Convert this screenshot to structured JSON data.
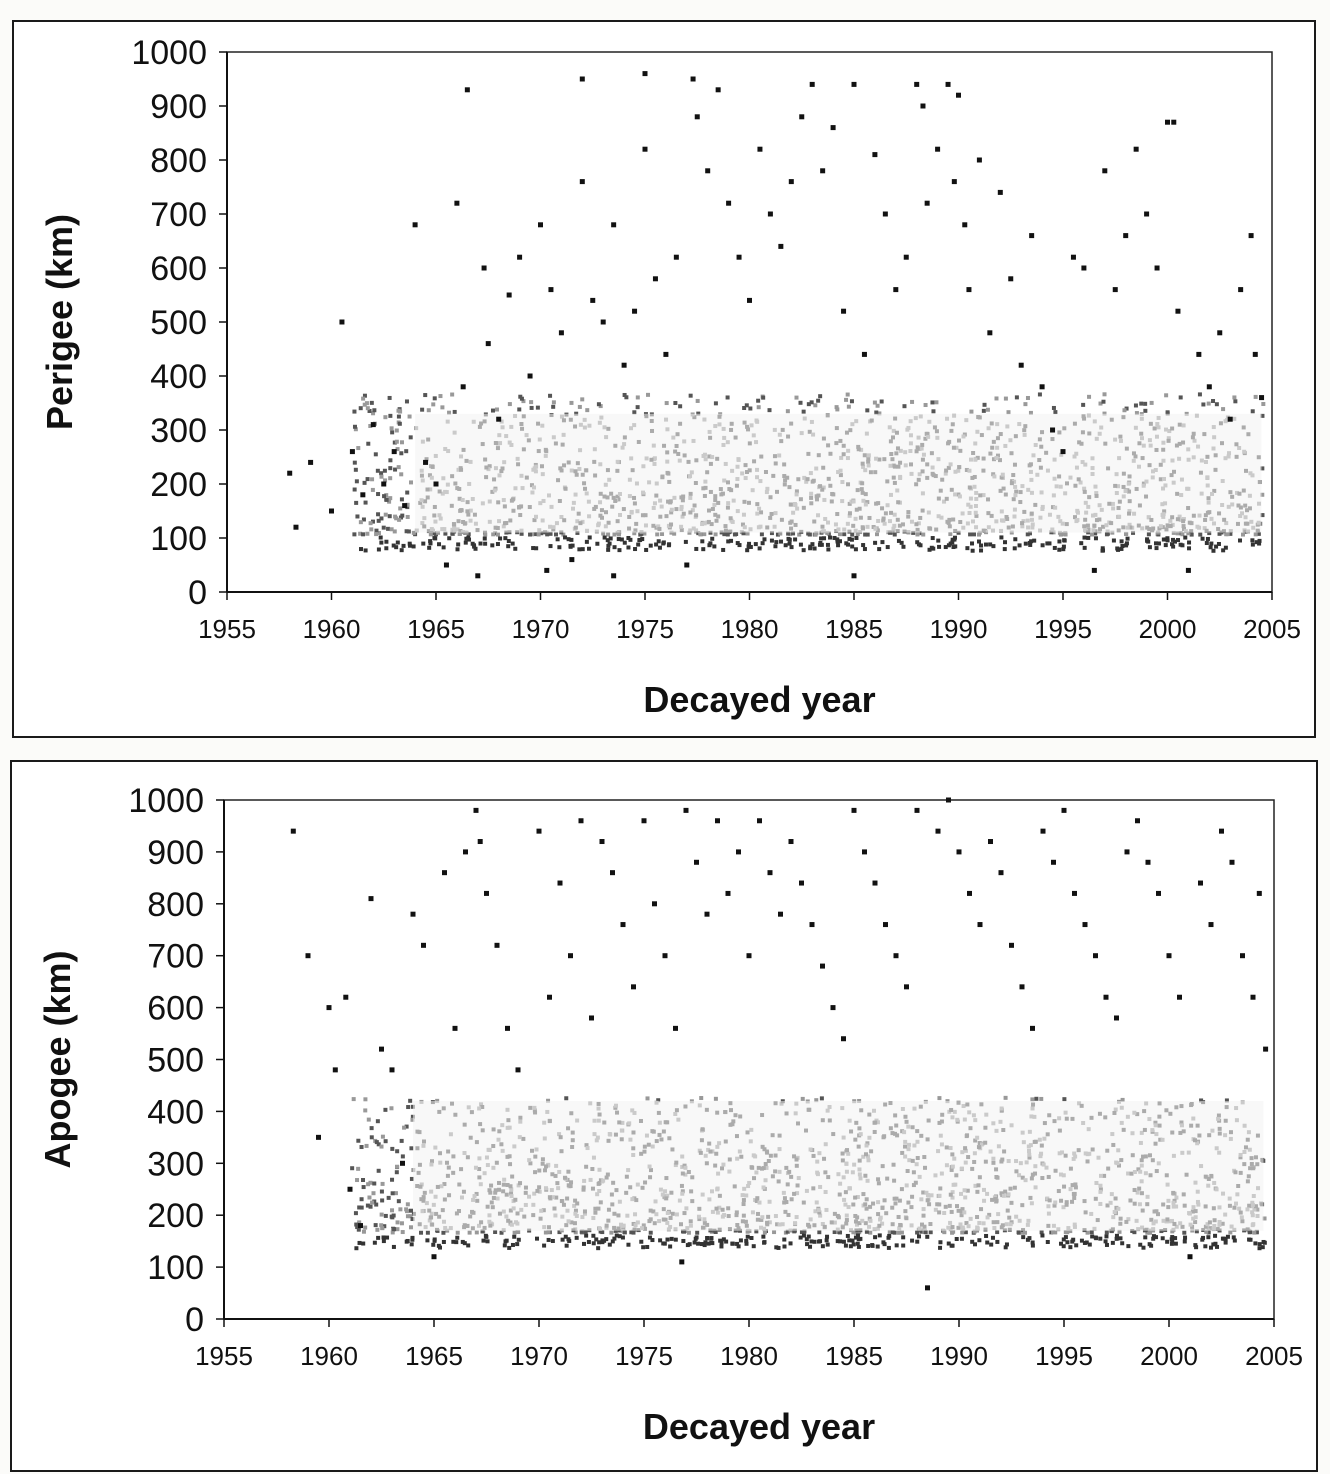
{
  "chart_data": [
    {
      "type": "scatter",
      "title": "",
      "xlabel": "Decayed year",
      "ylabel": "Perigee (km)",
      "xlim": [
        1955,
        2005
      ],
      "ylim": [
        0,
        1000
      ],
      "x_ticks": [
        "1955",
        "1960",
        "1965",
        "1970",
        "1975",
        "1980",
        "1985",
        "1990",
        "1995",
        "2000",
        "2005"
      ],
      "y_ticks": [
        "0",
        "100",
        "200",
        "300",
        "400",
        "500",
        "600",
        "700",
        "800",
        "900",
        "1000"
      ],
      "grid": false,
      "legend": "none",
      "marker_color": "#111111",
      "points": [
        [
          1958.0,
          220
        ],
        [
          1958.3,
          120
        ],
        [
          1959.0,
          240
        ],
        [
          1960.0,
          150
        ],
        [
          1960.5,
          500
        ],
        [
          1961.0,
          260
        ],
        [
          1961.5,
          180
        ],
        [
          1962.0,
          310
        ],
        [
          1962.5,
          200
        ],
        [
          1963.0,
          260
        ],
        [
          1963.5,
          160
        ],
        [
          1964.0,
          680
        ],
        [
          1964.5,
          240
        ],
        [
          1965.0,
          200
        ],
        [
          1965.5,
          50
        ],
        [
          1966.0,
          720
        ],
        [
          1966.3,
          380
        ],
        [
          1966.5,
          930
        ],
        [
          1967.0,
          30
        ],
        [
          1967.3,
          600
        ],
        [
          1967.5,
          460
        ],
        [
          1968.0,
          320
        ],
        [
          1968.5,
          550
        ],
        [
          1969.0,
          620
        ],
        [
          1969.5,
          400
        ],
        [
          1970.0,
          680
        ],
        [
          1970.3,
          40
        ],
        [
          1970.5,
          560
        ],
        [
          1971.0,
          480
        ],
        [
          1971.5,
          60
        ],
        [
          1972.0,
          950
        ],
        [
          1972.0,
          760
        ],
        [
          1972.5,
          540
        ],
        [
          1973.0,
          500
        ],
        [
          1973.5,
          680
        ],
        [
          1973.5,
          30
        ],
        [
          1974.0,
          420
        ],
        [
          1974.5,
          520
        ],
        [
          1975.0,
          820
        ],
        [
          1975.0,
          960
        ],
        [
          1975.5,
          580
        ],
        [
          1976.0,
          440
        ],
        [
          1976.5,
          620
        ],
        [
          1977.0,
          50
        ],
        [
          1977.3,
          950
        ],
        [
          1977.5,
          880
        ],
        [
          1978.0,
          780
        ],
        [
          1978.5,
          930
        ],
        [
          1979.0,
          720
        ],
        [
          1979.5,
          620
        ],
        [
          1980.0,
          540
        ],
        [
          1980.5,
          820
        ],
        [
          1981.0,
          700
        ],
        [
          1981.5,
          640
        ],
        [
          1982.0,
          760
        ],
        [
          1982.5,
          880
        ],
        [
          1983.0,
          940
        ],
        [
          1983.5,
          780
        ],
        [
          1984.0,
          860
        ],
        [
          1984.5,
          520
        ],
        [
          1985.0,
          940
        ],
        [
          1985.0,
          30
        ],
        [
          1985.5,
          440
        ],
        [
          1986.0,
          810
        ],
        [
          1986.5,
          700
        ],
        [
          1987.0,
          560
        ],
        [
          1987.5,
          620
        ],
        [
          1988.0,
          940
        ],
        [
          1988.3,
          900
        ],
        [
          1988.5,
          720
        ],
        [
          1989.0,
          820
        ],
        [
          1989.5,
          940
        ],
        [
          1989.8,
          760
        ],
        [
          1990.0,
          920
        ],
        [
          1990.3,
          680
        ],
        [
          1990.5,
          560
        ],
        [
          1991.0,
          800
        ],
        [
          1991.5,
          480
        ],
        [
          1992.0,
          740
        ],
        [
          1992.5,
          580
        ],
        [
          1993.0,
          420
        ],
        [
          1993.5,
          660
        ],
        [
          1994.0,
          380
        ],
        [
          1994.5,
          300
        ],
        [
          1995.0,
          260
        ],
        [
          1995.5,
          620
        ],
        [
          1996.0,
          600
        ],
        [
          1996.5,
          40
        ],
        [
          1997.0,
          780
        ],
        [
          1997.5,
          560
        ],
        [
          1998.0,
          660
        ],
        [
          1998.5,
          820
        ],
        [
          1999.0,
          700
        ],
        [
          1999.5,
          600
        ],
        [
          2000.0,
          870
        ],
        [
          2000.3,
          870
        ],
        [
          2000.5,
          520
        ],
        [
          2001.0,
          40
        ],
        [
          2001.5,
          440
        ],
        [
          2002.0,
          380
        ],
        [
          2002.5,
          480
        ],
        [
          2003.0,
          320
        ],
        [
          2003.5,
          560
        ],
        [
          2004.0,
          660
        ],
        [
          2004.2,
          440
        ],
        [
          2004.5,
          360
        ]
      ]
    },
    {
      "type": "scatter",
      "title": "",
      "xlabel": "Decayed year",
      "ylabel": "Apogee (km)",
      "xlim": [
        1955,
        2005
      ],
      "ylim": [
        0,
        1000
      ],
      "x_ticks": [
        "1955",
        "1960",
        "1965",
        "1970",
        "1975",
        "1980",
        "1985",
        "1990",
        "1995",
        "2000",
        "2005"
      ],
      "y_ticks": [
        "0",
        "100",
        "200",
        "300",
        "400",
        "500",
        "600",
        "700",
        "800",
        "900",
        "1000"
      ],
      "grid": false,
      "legend": "none",
      "marker_color": "#111111",
      "points": [
        [
          1958.3,
          940
        ],
        [
          1959.0,
          700
        ],
        [
          1959.5,
          350
        ],
        [
          1960.0,
          600
        ],
        [
          1960.3,
          480
        ],
        [
          1960.8,
          620
        ],
        [
          1961.0,
          250
        ],
        [
          1961.5,
          180
        ],
        [
          1962.0,
          810
        ],
        [
          1962.5,
          520
        ],
        [
          1963.0,
          480
        ],
        [
          1963.5,
          300
        ],
        [
          1964.0,
          780
        ],
        [
          1964.5,
          720
        ],
        [
          1965.0,
          120
        ],
        [
          1965.5,
          860
        ],
        [
          1966.0,
          560
        ],
        [
          1966.5,
          900
        ],
        [
          1967.0,
          980
        ],
        [
          1967.2,
          920
        ],
        [
          1967.5,
          820
        ],
        [
          1968.0,
          720
        ],
        [
          1968.5,
          560
        ],
        [
          1969.0,
          480
        ],
        [
          1970.0,
          940
        ],
        [
          1970.5,
          620
        ],
        [
          1971.0,
          840
        ],
        [
          1971.5,
          700
        ],
        [
          1972.0,
          960
        ],
        [
          1972.5,
          580
        ],
        [
          1973.0,
          920
        ],
        [
          1973.5,
          860
        ],
        [
          1974.0,
          760
        ],
        [
          1974.5,
          640
        ],
        [
          1975.0,
          960
        ],
        [
          1975.5,
          800
        ],
        [
          1976.0,
          700
        ],
        [
          1976.5,
          560
        ],
        [
          1976.8,
          110
        ],
        [
          1977.0,
          980
        ],
        [
          1977.5,
          880
        ],
        [
          1978.0,
          780
        ],
        [
          1978.5,
          960
        ],
        [
          1979.0,
          820
        ],
        [
          1979.5,
          900
        ],
        [
          1980.0,
          700
        ],
        [
          1980.5,
          960
        ],
        [
          1981.0,
          860
        ],
        [
          1981.5,
          780
        ],
        [
          1982.0,
          920
        ],
        [
          1982.5,
          840
        ],
        [
          1983.0,
          760
        ],
        [
          1983.5,
          680
        ],
        [
          1984.0,
          600
        ],
        [
          1984.5,
          540
        ],
        [
          1985.0,
          980
        ],
        [
          1985.5,
          900
        ],
        [
          1986.0,
          840
        ],
        [
          1986.5,
          760
        ],
        [
          1987.0,
          700
        ],
        [
          1987.5,
          640
        ],
        [
          1988.0,
          980
        ],
        [
          1988.5,
          60
        ],
        [
          1989.0,
          940
        ],
        [
          1989.5,
          1000
        ],
        [
          1990.0,
          900
        ],
        [
          1990.5,
          820
        ],
        [
          1991.0,
          760
        ],
        [
          1991.5,
          920
        ],
        [
          1992.0,
          860
        ],
        [
          1992.5,
          720
        ],
        [
          1993.0,
          640
        ],
        [
          1993.5,
          560
        ],
        [
          1994.0,
          940
        ],
        [
          1994.5,
          880
        ],
        [
          1995.0,
          980
        ],
        [
          1995.5,
          820
        ],
        [
          1996.0,
          760
        ],
        [
          1996.5,
          700
        ],
        [
          1997.0,
          620
        ],
        [
          1997.5,
          580
        ],
        [
          1998.0,
          900
        ],
        [
          1998.5,
          960
        ],
        [
          1999.0,
          880
        ],
        [
          1999.5,
          820
        ],
        [
          2000.0,
          700
        ],
        [
          2000.5,
          620
        ],
        [
          2001.0,
          120
        ],
        [
          2001.5,
          840
        ],
        [
          2002.0,
          760
        ],
        [
          2002.5,
          940
        ],
        [
          2003.0,
          880
        ],
        [
          2003.5,
          700
        ],
        [
          2004.0,
          620
        ],
        [
          2004.3,
          820
        ],
        [
          2004.6,
          520
        ]
      ]
    }
  ]
}
